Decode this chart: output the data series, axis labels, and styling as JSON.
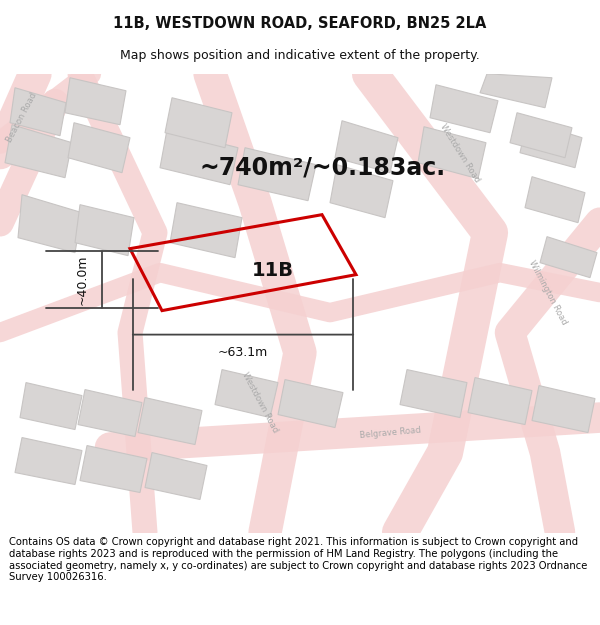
{
  "title_line1": "11B, WESTDOWN ROAD, SEAFORD, BN25 2LA",
  "title_line2": "Map shows position and indicative extent of the property.",
  "footer_text": "Contains OS data © Crown copyright and database right 2021. This information is subject to Crown copyright and database rights 2023 and is reproduced with the permission of HM Land Registry. The polygons (including the associated geometry, namely x, y co-ordinates) are subject to Crown copyright and database rights 2023 Ordnance Survey 100026316.",
  "area_label": "~740m²/~0.183ac.",
  "width_label": "~63.1m",
  "height_label": "~40.0m",
  "plot_label": "11B",
  "map_bg": "#efedec",
  "road_fill": "#f5d0d0",
  "road_edge": "#e8b8b8",
  "building_fill": "#d8d5d4",
  "building_edge": "#c8c5c4",
  "highlight_color": "#cc0000",
  "dim_color": "#444444",
  "text_color": "#111111",
  "road_label_color": "#aaaaaa",
  "title_fontsize": 10.5,
  "subtitle_fontsize": 9,
  "area_fontsize": 17,
  "plot_label_fontsize": 14,
  "dim_fontsize": 9,
  "footer_fontsize": 7.2,
  "road_label_fontsize": 6
}
